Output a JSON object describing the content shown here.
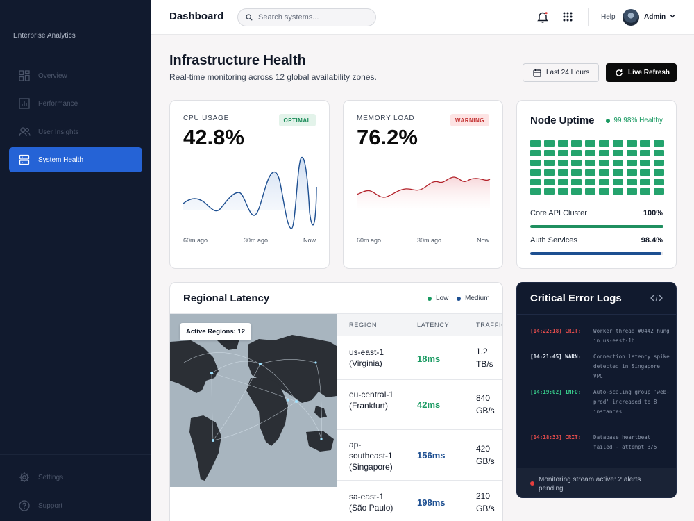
{
  "sidebar": {
    "brand": "Enterprise Analytics",
    "items": [
      {
        "label": "Overview",
        "icon": "grid-icon"
      },
      {
        "label": "Performance",
        "icon": "chart-icon"
      },
      {
        "label": "User Insights",
        "icon": "users-icon"
      },
      {
        "label": "System Health",
        "icon": "server-icon",
        "active": true
      }
    ],
    "bottom_items": [
      {
        "label": "Settings",
        "icon": "gear-icon"
      },
      {
        "label": "Support",
        "icon": "help-circle-icon"
      }
    ],
    "colors": {
      "background": "#111a2e",
      "active": "#2563d6"
    }
  },
  "topbar": {
    "title": "Dashboard",
    "search_placeholder": "Search systems...",
    "help_label": "Help",
    "user_name": "Admin",
    "has_notification": true
  },
  "header": {
    "title": "Infrastructure Health",
    "subtitle": "Real-time monitoring across 12 global availability zones.",
    "range_button": "Last 24 Hours",
    "refresh_button": "Live Refresh"
  },
  "cpu": {
    "label": "CPU USAGE",
    "value": "42.8%",
    "badge": "OPTIMAL",
    "axis": [
      "60m ago",
      "30m ago",
      "Now"
    ],
    "color": "#1d4f91"
  },
  "memory": {
    "label": "MEMORY LOAD",
    "value": "76.2%",
    "badge": "WARNING",
    "axis": [
      "60m ago",
      "30m ago",
      "Now"
    ],
    "color": "#b3222a"
  },
  "uptime": {
    "title": "Node Uptime",
    "health": "99.98% Healthy",
    "grid_rows": 6,
    "grid_cols": 10,
    "services": [
      {
        "name": "Core API Cluster",
        "value": "100%",
        "fill": 1.0,
        "color": "#1f8f5f"
      },
      {
        "name": "Auth Services",
        "value": "98.4%",
        "fill": 0.984,
        "color": "#1d4f91"
      }
    ]
  },
  "latency": {
    "title": "Regional Latency",
    "legend": [
      {
        "label": "Low",
        "color": "#1a9a62"
      },
      {
        "label": "Medium",
        "color": "#1d4f91"
      }
    ],
    "active_regions": "Active Regions: 12",
    "columns": [
      "REGION",
      "LATENCY",
      "TRAFFIC"
    ],
    "rows": [
      {
        "region": "us-east-1 (Virginia)",
        "latency": "18ms",
        "traffic": "1.2 TB/s",
        "level": "low"
      },
      {
        "region": "eu-central-1 (Frankfurt)",
        "latency": "42ms",
        "traffic": "840 GB/s",
        "level": "low"
      },
      {
        "region": "ap-southeast-1 (Singapore)",
        "latency": "156ms",
        "traffic": "420 GB/s",
        "level": "medium"
      },
      {
        "region": "sa-east-1 (São Paulo)",
        "latency": "198ms",
        "traffic": "210 GB/s",
        "level": "medium"
      }
    ]
  },
  "logs": {
    "title": "Critical Error Logs",
    "entries": [
      {
        "tag": "[14:22:18] CRIT:",
        "message": "Worker thread #0442 hung in us-east-1b",
        "level": "crit"
      },
      {
        "tag": "[14:21:45] WARN:",
        "message": "Connection latency spike detected in Singapore VPC",
        "level": "warn"
      },
      {
        "tag": "[14:19:02] INFO:",
        "message": "Auto-scaling group 'web-prod' increased to 8 instances",
        "level": "info"
      },
      {
        "tag": "[14:18:33] CRIT:",
        "message": "Database heartbeat failed - attempt 3/5",
        "level": "crit"
      }
    ],
    "footer": "Monitoring stream active: 2 alerts pending"
  }
}
